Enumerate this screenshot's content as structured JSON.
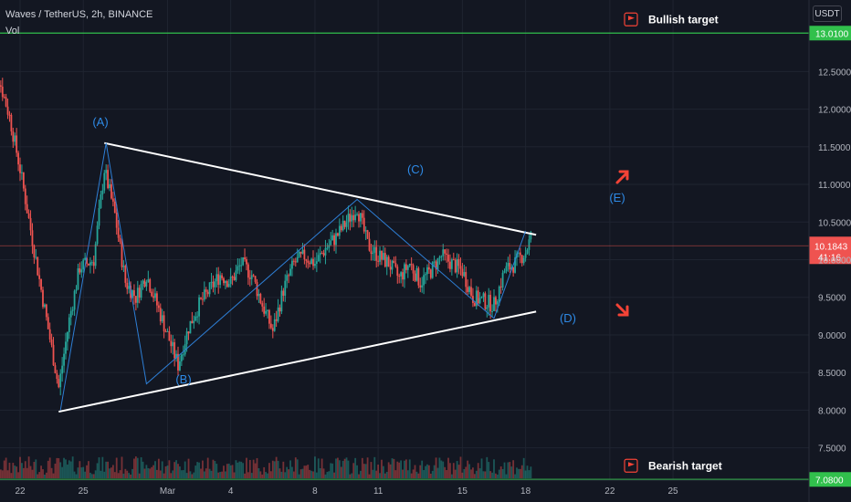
{
  "header": {
    "symbol_line": "Waves / TetherUS, 2h, BINANCE",
    "indicator": "Vol",
    "currency_button": "USDT"
  },
  "price_tag": {
    "value": "10.1843",
    "countdown": "41:16"
  },
  "targets": [
    {
      "label": "Bullish target",
      "price": 13.01,
      "price_label": "13.0100"
    },
    {
      "label": "Bearish target",
      "price": 7.08,
      "price_label": "7.0800"
    }
  ],
  "colors": {
    "background": "#131722",
    "up": "#26a69a",
    "down": "#ef5350",
    "target_line": "#31c04c",
    "wave": "#2e7fd6",
    "trendline": "#ffffff",
    "arrow": "#f44336"
  },
  "chart_data": {
    "type": "candlestick",
    "title": "Waves / TetherUS, 2h, BINANCE",
    "xlabel": "",
    "ylabel": "",
    "y_axis": {
      "ticks": [
        "7.5000",
        "8.0000",
        "8.5000",
        "9.0000",
        "9.5000",
        "10.0000",
        "10.5000",
        "11.0000",
        "11.5000",
        "12.0000",
        "12.5000"
      ],
      "range": [
        6.78,
        13.45
      ],
      "position": "right"
    },
    "x_axis": {
      "ticks": [
        "22",
        "25",
        "Mar",
        "4",
        "8",
        "11",
        "15",
        "18",
        "22",
        "25"
      ]
    },
    "grid": true,
    "wave_labels": [
      "(A)",
      "(B)",
      "(C)",
      "(D)",
      "(E)"
    ],
    "wave_path": [
      {
        "x": "Feb 23 22:00",
        "y": 8.0
      },
      {
        "x": "Feb 26 02:00",
        "y": 11.55
      },
      {
        "x": "Feb 28 00:00",
        "y": 8.35
      },
      {
        "x": "Mar 10 00:00",
        "y": 10.8
      },
      {
        "x": "Mar 16 12:00",
        "y": 9.22
      },
      {
        "x": "Mar 18 00:00",
        "y": 10.38
      }
    ],
    "trendlines": [
      {
        "name": "upper",
        "from": {
          "x": "Feb 26 00:00",
          "y": 11.55
        },
        "to": {
          "x": "Mar 18 12:00",
          "y": 10.33
        }
      },
      {
        "name": "lower",
        "from": {
          "x": "Feb 23 20:00",
          "y": 7.98
        },
        "to": {
          "x": "Mar 18 12:00",
          "y": 9.31
        }
      }
    ],
    "horizontal_lines": [
      {
        "label": "Bullish target",
        "y": 13.01
      },
      {
        "label": "Bearish target",
        "y": 7.08
      }
    ],
    "last_price": 10.1843,
    "anchors": [
      {
        "x": "Feb 20 12:00",
        "y": 12.8
      },
      {
        "x": "Feb 21 00:00",
        "y": 12.4
      },
      {
        "x": "Feb 21 12:00",
        "y": 11.9
      },
      {
        "x": "Feb 22 00:00",
        "y": 11.2
      },
      {
        "x": "Feb 22 12:00",
        "y": 10.4
      },
      {
        "x": "Feb 23 00:00",
        "y": 9.6
      },
      {
        "x": "Feb 23 20:00",
        "y": 8.3
      },
      {
        "x": "Feb 24 08:00",
        "y": 9.2
      },
      {
        "x": "Feb 24 20:00",
        "y": 9.9
      },
      {
        "x": "Feb 25 12:00",
        "y": 10.0
      },
      {
        "x": "Feb 26 00:00",
        "y": 11.2
      },
      {
        "x": "Feb 26 12:00",
        "y": 10.6
      },
      {
        "x": "Feb 27 00:00",
        "y": 9.7
      },
      {
        "x": "Feb 27 12:00",
        "y": 9.5
      },
      {
        "x": "Feb 28 00:00",
        "y": 9.8
      },
      {
        "x": "Feb 28 12:00",
        "y": 9.4
      },
      {
        "x": "Mar 1 00:00",
        "y": 9.0
      },
      {
        "x": "Mar 1 12:00",
        "y": 8.6
      },
      {
        "x": "Mar 2 00:00",
        "y": 9.1
      },
      {
        "x": "Mar 2 12:00",
        "y": 9.4
      },
      {
        "x": "Mar 3 00:00",
        "y": 9.6
      },
      {
        "x": "Mar 3 12:00",
        "y": 9.8
      },
      {
        "x": "Mar 4 00:00",
        "y": 9.7
      },
      {
        "x": "Mar 4 12:00",
        "y": 9.95
      },
      {
        "x": "Mar 5 00:00",
        "y": 9.8
      },
      {
        "x": "Mar 5 12:00",
        "y": 9.4
      },
      {
        "x": "Mar 6 00:00",
        "y": 9.05
      },
      {
        "x": "Mar 6 12:00",
        "y": 9.6
      },
      {
        "x": "Mar 7 00:00",
        "y": 9.95
      },
      {
        "x": "Mar 7 12:00",
        "y": 10.05
      },
      {
        "x": "Mar 8 00:00",
        "y": 9.95
      },
      {
        "x": "Mar 8 12:00",
        "y": 10.15
      },
      {
        "x": "Mar 9 00:00",
        "y": 10.3
      },
      {
        "x": "Mar 9 12:00",
        "y": 10.5
      },
      {
        "x": "Mar 10 00:00",
        "y": 10.7
      },
      {
        "x": "Mar 10 12:00",
        "y": 10.2
      },
      {
        "x": "Mar 11 00:00",
        "y": 10.05
      },
      {
        "x": "Mar 11 12:00",
        "y": 9.95
      },
      {
        "x": "Mar 12 00:00",
        "y": 9.75
      },
      {
        "x": "Mar 12 12:00",
        "y": 9.95
      },
      {
        "x": "Mar 13 00:00",
        "y": 9.7
      },
      {
        "x": "Mar 13 12:00",
        "y": 9.85
      },
      {
        "x": "Mar 14 00:00",
        "y": 10.05
      },
      {
        "x": "Mar 14 12:00",
        "y": 9.95
      },
      {
        "x": "Mar 15 00:00",
        "y": 9.85
      },
      {
        "x": "Mar 15 12:00",
        "y": 9.5
      },
      {
        "x": "Mar 16 00:00",
        "y": 9.45
      },
      {
        "x": "Mar 16 12:00",
        "y": 9.4
      },
      {
        "x": "Mar 17 00:00",
        "y": 9.85
      },
      {
        "x": "Mar 17 12:00",
        "y": 9.95
      },
      {
        "x": "Mar 18 00:00",
        "y": 10.1
      },
      {
        "x": "Mar 18 06:00",
        "y": 10.3
      }
    ]
  }
}
